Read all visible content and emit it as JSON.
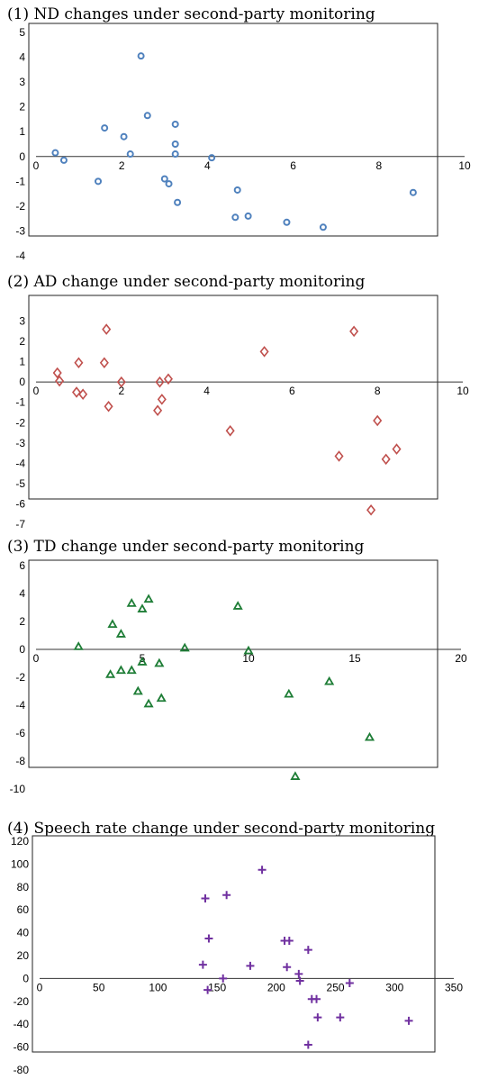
{
  "colors": {
    "blue": "#4f81bd",
    "red": "#c0504d",
    "green": "#1e7d36",
    "purple": "#7030a0"
  },
  "chart_data": [
    {
      "type": "scatter",
      "title": "(1) ND changes under second-party monitoring",
      "xlim": [
        0,
        10
      ],
      "ylim": [
        -4,
        5
      ],
      "xticks": [
        0,
        2,
        4,
        6,
        8,
        10
      ],
      "yticks": [
        -4,
        -3,
        -2,
        -1,
        0,
        1,
        2,
        3,
        4,
        5
      ],
      "marker": "circle",
      "color": "#4f81bd",
      "grid": false,
      "points": [
        [
          0.45,
          0.15
        ],
        [
          0.65,
          -0.15
        ],
        [
          1.45,
          -1.0
        ],
        [
          1.6,
          1.15
        ],
        [
          2.05,
          0.8
        ],
        [
          2.2,
          0.1
        ],
        [
          2.45,
          4.05
        ],
        [
          2.6,
          1.65
        ],
        [
          3.0,
          -0.9
        ],
        [
          3.1,
          -1.1
        ],
        [
          3.25,
          1.3
        ],
        [
          3.25,
          0.5
        ],
        [
          3.25,
          0.1
        ],
        [
          3.3,
          -1.85
        ],
        [
          4.1,
          -0.05
        ],
        [
          4.7,
          -1.35
        ],
        [
          4.65,
          -2.45
        ],
        [
          4.95,
          -2.4
        ],
        [
          5.85,
          -2.65
        ],
        [
          6.7,
          -2.85
        ],
        [
          8.8,
          -1.45
        ]
      ]
    },
    {
      "type": "scatter",
      "title": "(2) AD change under second-party monitoring",
      "xlim": [
        0,
        10
      ],
      "ylim": [
        -7,
        4
      ],
      "xticks": [
        0,
        2,
        4,
        6,
        8,
        10
      ],
      "yticks": [
        -7,
        -6,
        -5,
        -4,
        -3,
        -2,
        -1,
        0,
        1,
        2,
        3
      ],
      "marker": "diamond",
      "color": "#c0504d",
      "grid": false,
      "points": [
        [
          0.5,
          0.45
        ],
        [
          0.55,
          0.05
        ],
        [
          0.95,
          -0.5
        ],
        [
          1.0,
          0.95
        ],
        [
          1.1,
          -0.6
        ],
        [
          1.6,
          0.95
        ],
        [
          1.65,
          2.6
        ],
        [
          1.7,
          -1.2
        ],
        [
          2.0,
          0.0
        ],
        [
          2.85,
          -1.4
        ],
        [
          2.9,
          0.0
        ],
        [
          2.95,
          -0.85
        ],
        [
          3.1,
          0.15
        ],
        [
          4.55,
          -2.4
        ],
        [
          5.35,
          1.5
        ],
        [
          7.1,
          -3.65
        ],
        [
          7.45,
          2.5
        ],
        [
          7.85,
          -6.3
        ],
        [
          8.0,
          -1.9
        ],
        [
          8.2,
          -3.8
        ],
        [
          8.45,
          -3.3
        ]
      ]
    },
    {
      "type": "scatter",
      "title": "(3) TD change under second-party monitoring",
      "xlim": [
        0,
        20
      ],
      "ylim": [
        -10,
        6
      ],
      "xticks": [
        0,
        5,
        10,
        15,
        20
      ],
      "yticks": [
        -10,
        -8,
        -6,
        -4,
        -2,
        0,
        2,
        4,
        6
      ],
      "marker": "triangle",
      "color": "#1e7d36",
      "grid": false,
      "points": [
        [
          2.0,
          0.2
        ],
        [
          3.5,
          -1.8
        ],
        [
          3.6,
          1.8
        ],
        [
          4.0,
          -1.5
        ],
        [
          4.0,
          1.1
        ],
        [
          4.5,
          3.3
        ],
        [
          4.5,
          -1.5
        ],
        [
          4.8,
          -3.0
        ],
        [
          5.0,
          2.9
        ],
        [
          5.0,
          -0.9
        ],
        [
          5.3,
          3.6
        ],
        [
          5.3,
          -3.9
        ],
        [
          5.8,
          -1.0
        ],
        [
          5.9,
          -3.5
        ],
        [
          7.0,
          0.1
        ],
        [
          9.5,
          3.1
        ],
        [
          10.0,
          -0.1
        ],
        [
          11.9,
          -3.2
        ],
        [
          12.2,
          -9.1
        ],
        [
          13.8,
          -2.3
        ],
        [
          15.7,
          -6.3
        ]
      ]
    },
    {
      "type": "scatter",
      "title": "(4) Speech rate change under second-party monitoring",
      "xlim": [
        0,
        350
      ],
      "ylim": [
        -80,
        120
      ],
      "xticks": [
        0,
        50,
        100,
        150,
        200,
        250,
        300,
        350
      ],
      "yticks": [
        -80,
        -60,
        -40,
        -20,
        0,
        20,
        40,
        60,
        80,
        100,
        120
      ],
      "marker": "plus",
      "color": "#7030a0",
      "grid": false,
      "points": [
        [
          138,
          12
        ],
        [
          140,
          70
        ],
        [
          142,
          -10
        ],
        [
          143,
          35
        ],
        [
          155,
          0
        ],
        [
          158,
          73
        ],
        [
          178,
          11
        ],
        [
          188,
          95
        ],
        [
          207,
          33
        ],
        [
          209,
          10
        ],
        [
          211,
          33
        ],
        [
          219,
          4
        ],
        [
          220,
          -2
        ],
        [
          227,
          25
        ],
        [
          227,
          -58
        ],
        [
          230,
          -18
        ],
        [
          234,
          -18
        ],
        [
          235,
          -34
        ],
        [
          254,
          -34
        ],
        [
          262,
          -4
        ],
        [
          312,
          -37
        ]
      ]
    }
  ]
}
